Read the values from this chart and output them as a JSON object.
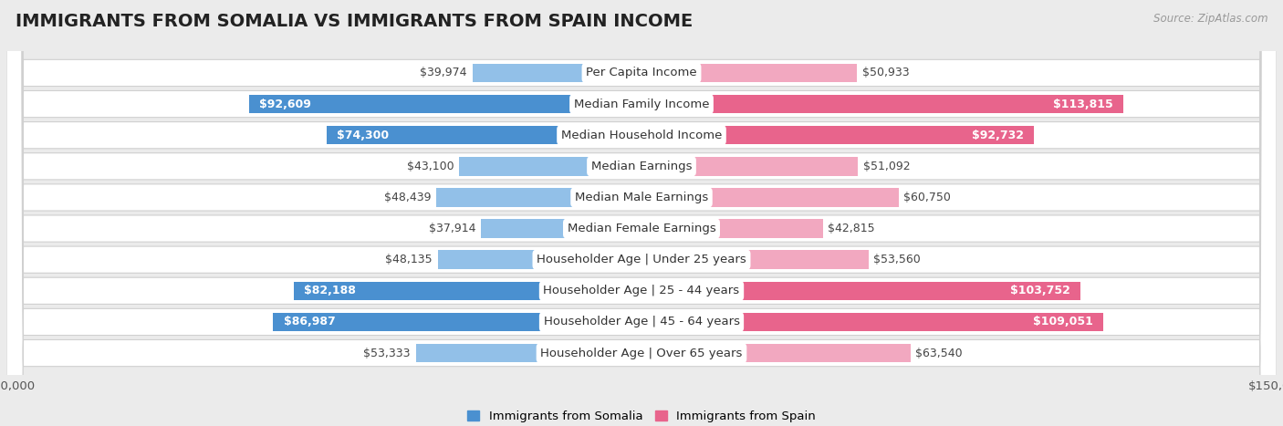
{
  "title": "IMMIGRANTS FROM SOMALIA VS IMMIGRANTS FROM SPAIN INCOME",
  "source": "Source: ZipAtlas.com",
  "categories": [
    "Per Capita Income",
    "Median Family Income",
    "Median Household Income",
    "Median Earnings",
    "Median Male Earnings",
    "Median Female Earnings",
    "Householder Age | Under 25 years",
    "Householder Age | 25 - 44 years",
    "Householder Age | 45 - 64 years",
    "Householder Age | Over 65 years"
  ],
  "somalia_values": [
    39974,
    92609,
    74300,
    43100,
    48439,
    37914,
    48135,
    82188,
    86987,
    53333
  ],
  "spain_values": [
    50933,
    113815,
    92732,
    51092,
    60750,
    42815,
    53560,
    103752,
    109051,
    63540
  ],
  "somalia_labels": [
    "$39,974",
    "$92,609",
    "$74,300",
    "$43,100",
    "$48,439",
    "$37,914",
    "$48,135",
    "$82,188",
    "$86,987",
    "$53,333"
  ],
  "spain_labels": [
    "$50,933",
    "$113,815",
    "$92,732",
    "$51,092",
    "$60,750",
    "$42,815",
    "$53,560",
    "$103,752",
    "$109,051",
    "$63,540"
  ],
  "somalia_color": "#92C0E8",
  "somalia_color_dark": "#4A90D0",
  "spain_color": "#F2A8C0",
  "spain_color_dark": "#E8648C",
  "max_value": 150000,
  "background_color": "#ebebeb",
  "row_bg_color": "#ffffff",
  "label_bg_color": "#ffffff",
  "somalia_highlight": [
    1,
    2,
    7,
    8
  ],
  "spain_highlight": [
    1,
    2,
    7,
    8
  ],
  "title_fontsize": 14,
  "label_fontsize": 9.5,
  "value_fontsize": 9.0
}
